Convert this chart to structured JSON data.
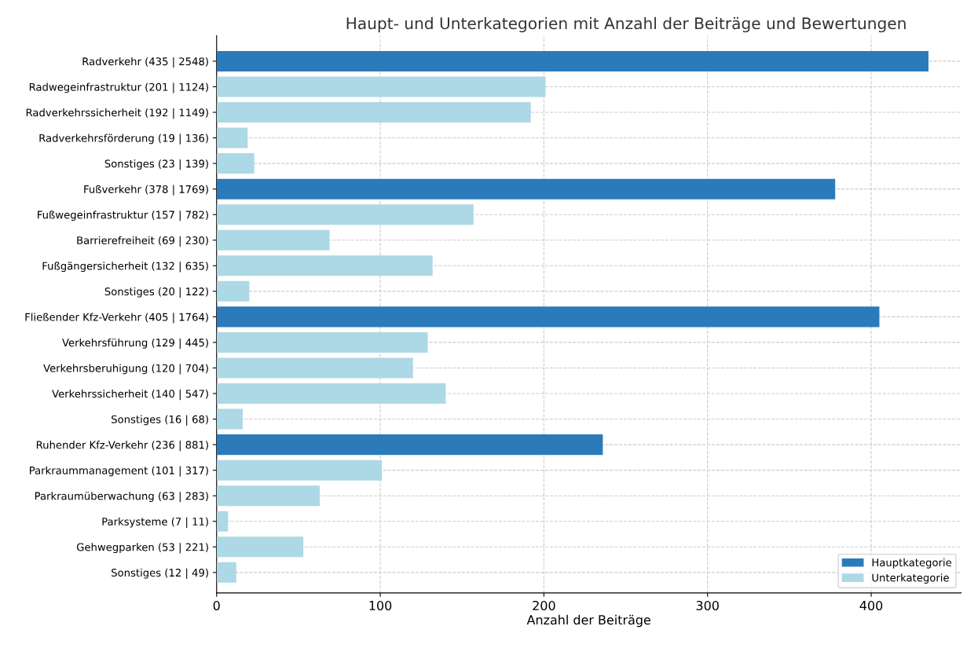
{
  "chart_data": {
    "type": "bar",
    "orientation": "horizontal",
    "title": "Haupt- und Unterkategorien mit Anzahl der Beiträge und Bewertungen",
    "xlabel": "Anzahl der Beiträge",
    "categories": [
      "Radverkehr (435 | 2548)",
      "Radwegeinfrastruktur (201 | 1124)",
      "Radverkehrssicherheit (192 | 1149)",
      "Radverkehrsförderung (19 | 136)",
      "Sonstiges (23 | 139)",
      "Fußverkehr (378 | 1769)",
      "Fußwegeinfrastruktur (157 | 782)",
      "Barrierefreiheit (69 | 230)",
      "Fußgängersicherheit (132 | 635)",
      "Sonstiges (20 | 122)",
      "Fließender Kfz-Verkehr (405 | 1764)",
      "Verkehrsführung (129 | 445)",
      "Verkehrsberuhigung (120 | 704)",
      "Verkehrssicherheit (140 | 547)",
      "Sonstiges (16 | 68)",
      "Ruhender Kfz-Verkehr (236 | 881)",
      "Parkraummanagement (101 | 317)",
      "Parkraumüberwachung (63 | 283)",
      "Parksysteme (7 | 11)",
      "Gehwegparken (53 | 221)",
      "Sonstiges (12 | 49)"
    ],
    "series": [
      {
        "name": "Hauptkategorie",
        "color": "#2b7bba",
        "values": [
          435,
          null,
          null,
          null,
          null,
          378,
          null,
          null,
          null,
          null,
          405,
          null,
          null,
          null,
          null,
          236,
          null,
          null,
          null,
          null,
          null
        ]
      },
      {
        "name": "Unterkategorie",
        "color": "#add8e6",
        "values": [
          null,
          201,
          192,
          19,
          23,
          null,
          157,
          69,
          132,
          20,
          null,
          129,
          120,
          140,
          16,
          null,
          101,
          63,
          7,
          53,
          12
        ]
      }
    ],
    "xlim": [
      0,
      455
    ],
    "xticks": [
      0,
      100,
      200,
      300,
      400
    ],
    "grid": true,
    "legend": "bottom right"
  }
}
